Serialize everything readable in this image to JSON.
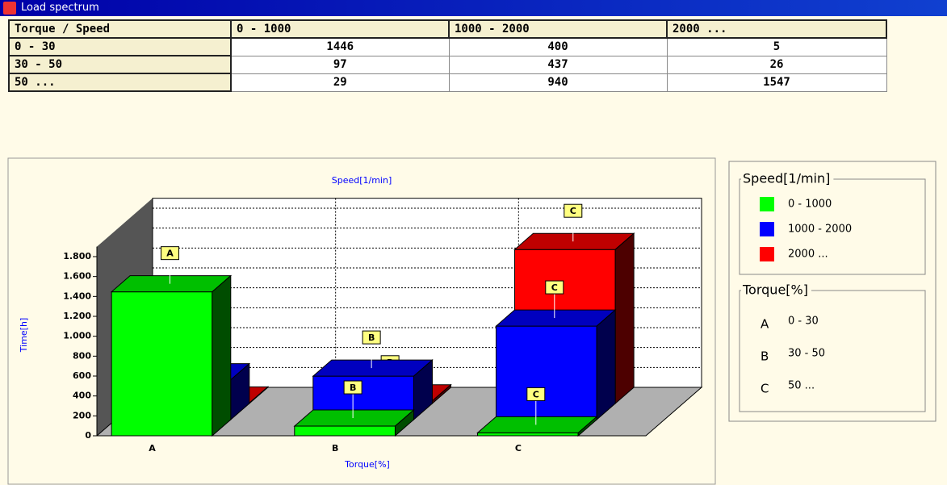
{
  "window": {
    "title": "Load spectrum"
  },
  "table": {
    "header": [
      "Torque / Speed",
      "0 - 1000",
      "1000 - 2000",
      "2000 ..."
    ],
    "rows": [
      [
        "0 - 30",
        1446,
        400,
        5
      ],
      [
        "30 - 50",
        97,
        437,
        26
      ],
      [
        "50 ...",
        29,
        940,
        1547
      ]
    ]
  },
  "chart_data": {
    "type": "bar3d",
    "title": "Speed[1/min]",
    "x_label": "Torque[%]",
    "y_label": "Time[h]",
    "categories": [
      "A",
      "B",
      "C"
    ],
    "series": [
      {
        "name": "0 - 1000",
        "color": "#00ff00",
        "values": [
          1446,
          97,
          29
        ]
      },
      {
        "name": "1000 - 2000",
        "color": "#0000ff",
        "values": [
          400,
          437,
          940
        ]
      },
      {
        "name": "2000 ...",
        "color": "#ff0000",
        "values": [
          5,
          26,
          1547
        ]
      }
    ],
    "ylim": [
      0,
      1900
    ],
    "yticks": [
      0,
      200,
      400,
      600,
      800,
      {
        "value": 1000,
        "label": "1.000"
      },
      {
        "value": 1200,
        "label": "1.200"
      },
      {
        "value": 1400,
        "label": "1.400"
      },
      {
        "value": 1600,
        "label": "1.600"
      },
      {
        "value": 1800,
        "label": "1.800"
      }
    ],
    "grid": true,
    "legend": {
      "title": "Speed[1/min]"
    },
    "legend2": {
      "title": "Torque[%]",
      "items": [
        {
          "key": "A",
          "label": "0 - 30"
        },
        {
          "key": "B",
          "label": "30 - 50"
        },
        {
          "key": "C",
          "label": "50 ..."
        }
      ]
    }
  }
}
